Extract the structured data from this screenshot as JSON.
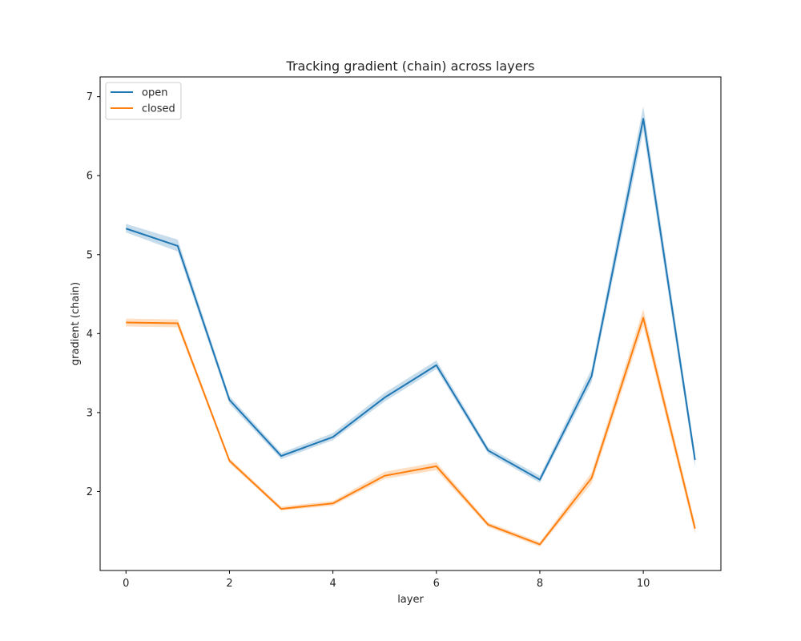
{
  "chart_data": {
    "type": "line",
    "title": "Tracking gradient (chain) across layers",
    "xlabel": "layer",
    "ylabel": "gradient (chain)",
    "x": [
      0,
      1,
      2,
      3,
      4,
      5,
      6,
      7,
      8,
      9,
      10,
      11
    ],
    "xlim": [
      -0.5,
      11.5
    ],
    "ylim": [
      1.0,
      7.25
    ],
    "xticks": [
      0,
      2,
      4,
      6,
      8,
      10
    ],
    "yticks": [
      2,
      3,
      4,
      5,
      6,
      7
    ],
    "grid": false,
    "legend_position": "top-left",
    "series": [
      {
        "name": "open",
        "color": "#1f77b4",
        "values": [
          5.33,
          5.11,
          3.16,
          2.45,
          2.69,
          3.19,
          3.6,
          2.52,
          2.15,
          3.46,
          6.72,
          2.4
        ],
        "lower": [
          5.28,
          5.04,
          3.11,
          2.41,
          2.65,
          3.14,
          3.55,
          2.48,
          2.11,
          3.38,
          6.57,
          2.31
        ],
        "upper": [
          5.39,
          5.19,
          3.21,
          2.49,
          2.74,
          3.25,
          3.66,
          2.56,
          2.2,
          3.55,
          6.88,
          2.49
        ]
      },
      {
        "name": "closed",
        "color": "#ff7f0e",
        "values": [
          4.14,
          4.13,
          2.39,
          1.78,
          1.85,
          2.2,
          2.32,
          1.58,
          1.33,
          2.17,
          4.2,
          1.53
        ],
        "lower": [
          4.09,
          4.08,
          2.36,
          1.76,
          1.82,
          2.16,
          2.27,
          1.55,
          1.3,
          2.1,
          4.1,
          1.46
        ],
        "upper": [
          4.19,
          4.18,
          2.42,
          1.81,
          1.88,
          2.25,
          2.37,
          1.61,
          1.36,
          2.24,
          4.31,
          1.6
        ]
      }
    ]
  }
}
